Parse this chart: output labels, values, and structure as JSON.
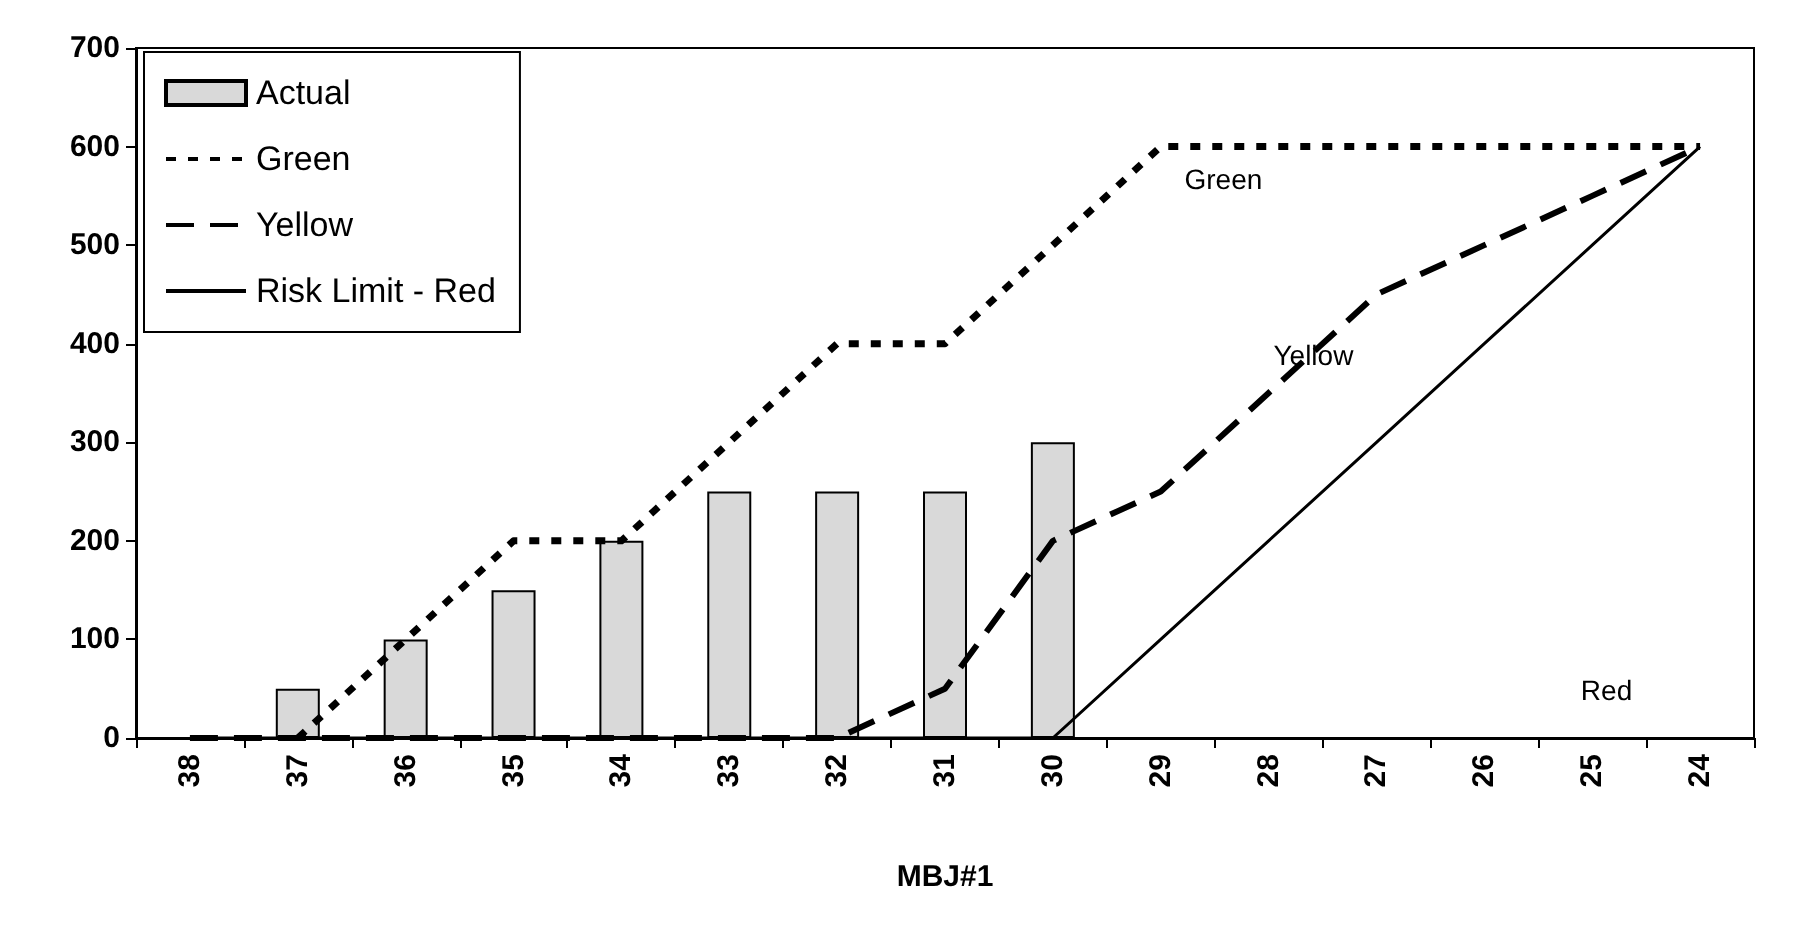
{
  "chart_data": {
    "type": "bar",
    "xlabel": "MBJ#1",
    "categories": [
      "38",
      "37",
      "36",
      "35",
      "34",
      "33",
      "32",
      "31",
      "30",
      "29",
      "28",
      "27",
      "26",
      "25",
      "24"
    ],
    "series": [
      {
        "name": "Actual",
        "color": "#d9d9d9",
        "values": [
          null,
          50,
          100,
          150,
          200,
          250,
          250,
          250,
          300,
          null,
          null,
          null,
          null,
          null,
          null
        ]
      },
      {
        "name": "Green",
        "type": "line",
        "color": "#000000",
        "line_style": "dotted",
        "values": [
          null,
          0,
          100,
          200,
          200,
          300,
          400,
          400,
          500,
          600,
          600,
          600,
          600,
          600,
          600
        ]
      },
      {
        "name": "Yellow",
        "type": "line",
        "color": "#000000",
        "line_style": "dashed",
        "values": [
          0,
          0,
          0,
          0,
          0,
          0,
          0,
          50,
          200,
          250,
          350,
          450,
          500,
          550,
          600
        ]
      },
      {
        "name": "Risk Limit - Red",
        "type": "line",
        "color": "#000000",
        "line_style": "solid",
        "values": [
          0,
          0,
          0,
          0,
          0,
          0,
          0,
          0,
          0,
          100,
          200,
          300,
          400,
          500,
          600
        ]
      }
    ],
    "ylim": [
      0,
      700
    ],
    "yticks": [
      0,
      100,
      200,
      300,
      400,
      500,
      600,
      700
    ],
    "grid": false,
    "legend": "top left",
    "marker": "none",
    "annotations": [
      "Green",
      "Yellow",
      "Red"
    ]
  }
}
